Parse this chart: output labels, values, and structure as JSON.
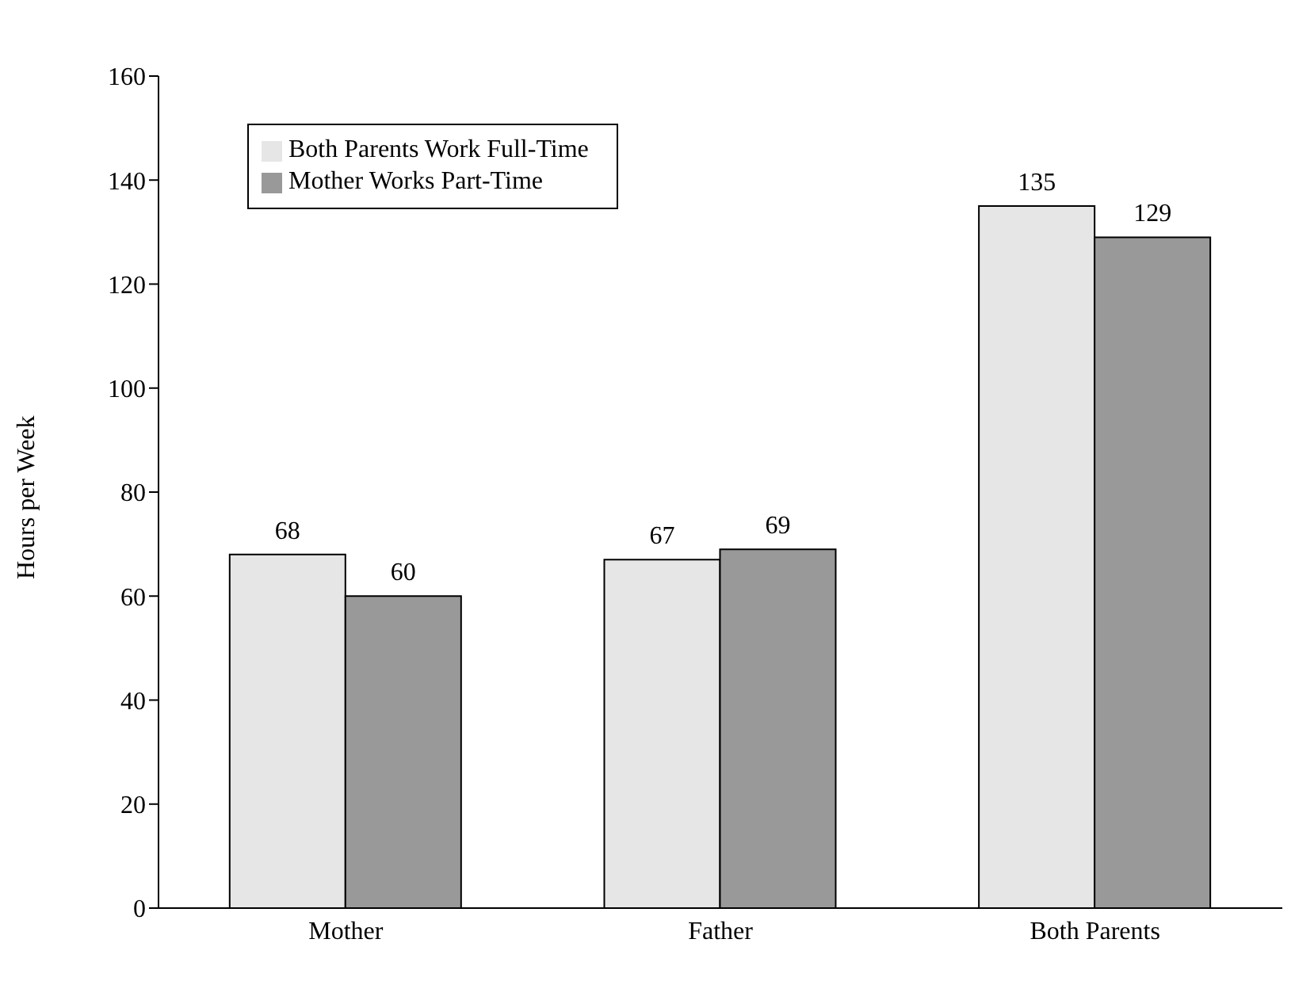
{
  "chart_data": {
    "type": "bar",
    "ylabel": "Hours per Week",
    "categories": [
      "Mother",
      "Father",
      "Both Parents"
    ],
    "series": [
      {
        "name": "Both Parents Work Full-Time",
        "color": "#e6e6e6",
        "values": [
          68,
          67,
          135
        ]
      },
      {
        "name": "Mother Works Part-Time",
        "color": "#999999",
        "values": [
          60,
          69,
          129
        ]
      }
    ],
    "ylim": [
      0,
      160
    ],
    "yticks": [
      0,
      20,
      40,
      60,
      80,
      100,
      120,
      140,
      160
    ],
    "grid": false,
    "legend": "top left",
    "data_labels": true
  }
}
